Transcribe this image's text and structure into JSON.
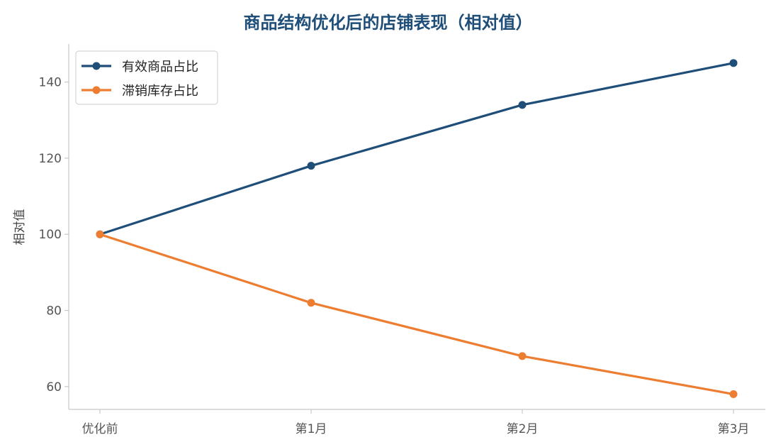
{
  "chart_data": {
    "type": "line",
    "title": "商品结构优化后的店铺表现（相对值）",
    "xlabel": "",
    "ylabel": "相对值",
    "categories": [
      "优化前",
      "第1月",
      "第2月",
      "第3月"
    ],
    "ylim": [
      54,
      150
    ],
    "yticks": [
      60,
      80,
      100,
      120,
      140
    ],
    "grid": false,
    "legend_position": "top-left",
    "series": [
      {
        "name": "有效商品占比",
        "color": "#1f4e79",
        "values": [
          100,
          118,
          134,
          145
        ]
      },
      {
        "name": "滞销库存占比",
        "color": "#ed7d31",
        "values": [
          100,
          82,
          68,
          58
        ]
      }
    ]
  }
}
